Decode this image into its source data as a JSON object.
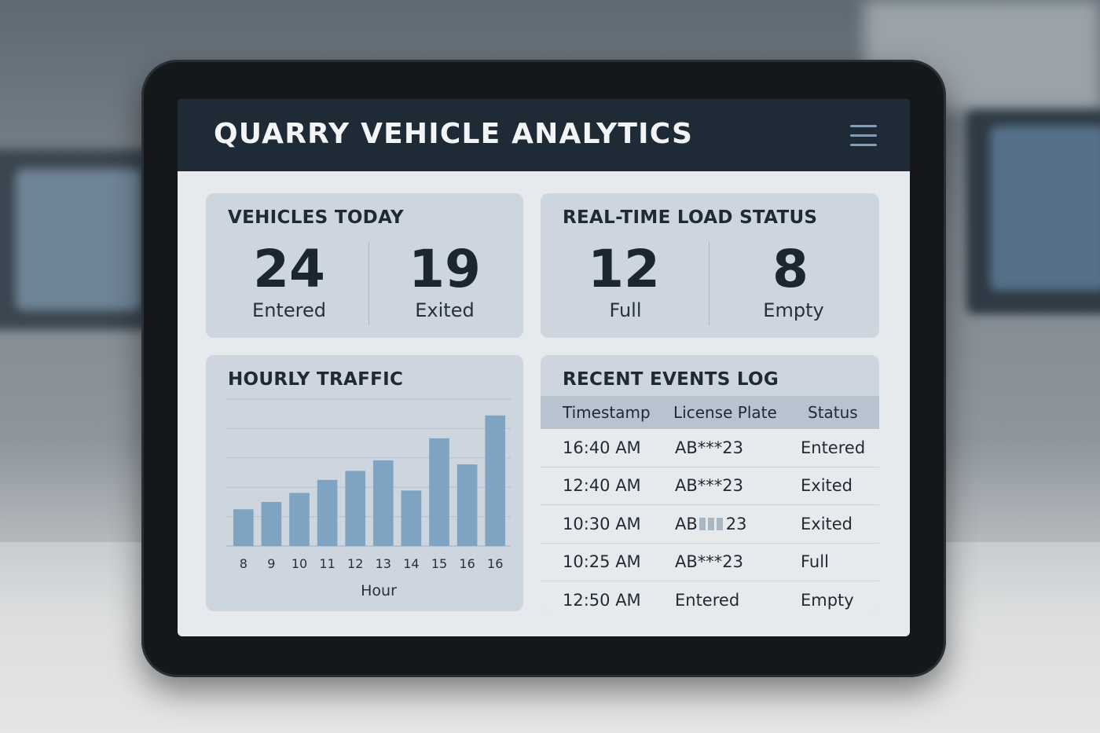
{
  "app": {
    "title": "QUARRY VEHICLE ANALYTICS",
    "menu_icon": "hamburger-menu-icon"
  },
  "vehicles_today": {
    "title": "VEHICLES TODAY",
    "entered": {
      "value": "24",
      "label": "Entered"
    },
    "exited": {
      "value": "19",
      "label": "Exited"
    }
  },
  "load_status": {
    "title": "REAL-TIME LOAD STATUS",
    "full": {
      "value": "12",
      "label": "Full"
    },
    "empty": {
      "value": "8",
      "label": "Empty"
    }
  },
  "hourly_traffic": {
    "title": "HOURLY TRAFFIC"
  },
  "chart_data": {
    "type": "bar",
    "title": "HOURLY TRAFFIC",
    "xlabel": "Hour",
    "ylabel": "",
    "categories": [
      "8",
      "9",
      "10",
      "11",
      "12",
      "13",
      "14",
      "15",
      "16",
      "16"
    ],
    "values": [
      4.5,
      5.4,
      6.5,
      8.1,
      9.2,
      10.5,
      6.8,
      13.2,
      10.0,
      16.0
    ],
    "ylim": [
      0,
      18
    ],
    "grid": true,
    "bar_color": "#7ea4c2"
  },
  "events_log": {
    "title": "RECENT EVENTS LOG",
    "columns": [
      "Timestamp",
      "License Plate",
      "Status"
    ],
    "rows": [
      {
        "time": "16:40 AM",
        "plate": "AB***23",
        "status": "Entered"
      },
      {
        "time": "12:40 AM",
        "plate": "AB***23",
        "status": "Exited"
      },
      {
        "time": "10:30 AM",
        "plate": "AB",
        "plate_suffix": "23",
        "status": "Exited"
      },
      {
        "time": "10:25 AM",
        "plate": "AB***23",
        "status": "Full"
      },
      {
        "time": "12:50 AM",
        "plate": "Entered",
        "status": "Empty"
      }
    ]
  }
}
